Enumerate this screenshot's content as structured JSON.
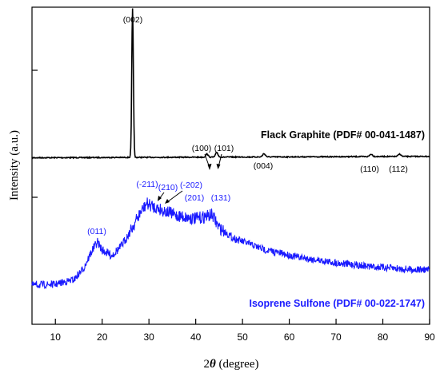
{
  "chart_data": {
    "type": "line",
    "xlabel_prefix": "2",
    "xlabel_symbol": "θ",
    "xlabel_suffix": " (degree)",
    "ylabel": "Intensity (a.u.)",
    "xlim": [
      5,
      90
    ],
    "x_ticks": [
      10,
      20,
      30,
      40,
      50,
      60,
      70,
      80,
      90
    ],
    "y_ticks_labeled": false,
    "grid": false,
    "series": [
      {
        "name": "Flack Graphite (PDF# 00-041-1487)",
        "color": "#000000",
        "peaks": [
          {
            "x": 26.5,
            "label": "(002)"
          },
          {
            "x": 42.4,
            "label": "(100)"
          },
          {
            "x": 44.5,
            "label": "(101)"
          },
          {
            "x": 54.6,
            "label": "(004)"
          },
          {
            "x": 77.5,
            "label": "(110)"
          },
          {
            "x": 83.6,
            "label": "(112)"
          }
        ]
      },
      {
        "name": "Isoprene Sulfone (PDF# 00-022-1747)",
        "color": "#1a1aff",
        "peaks": [
          {
            "x": 19.0,
            "label": "(011)"
          },
          {
            "x": 29.5,
            "label": "(-211)"
          },
          {
            "x": 32.0,
            "label": "(210)"
          },
          {
            "x": 33.5,
            "label": "(-202)"
          },
          {
            "x": 40.8,
            "label": "(201)"
          },
          {
            "x": 43.5,
            "label": "(131)"
          }
        ]
      }
    ]
  }
}
